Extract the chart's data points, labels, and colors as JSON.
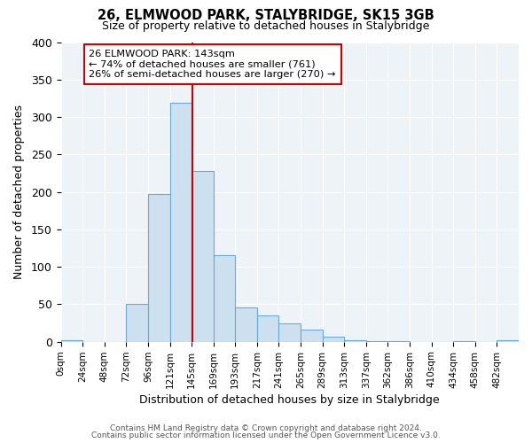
{
  "title": "26, ELMWOOD PARK, STALYBRIDGE, SK15 3GB",
  "subtitle": "Size of property relative to detached houses in Stalybridge",
  "xlabel": "Distribution of detached houses by size in Stalybridge",
  "ylabel": "Number of detached properties",
  "bar_color": "#cce0f0",
  "bar_edge_color": "#6aaad4",
  "plot_bg_color": "#eef3f8",
  "fig_bg_color": "#ffffff",
  "grid_color": "#ffffff",
  "vline_x": 145,
  "vline_color": "#cc0000",
  "annotation_line1": "26 ELMWOOD PARK: 143sqm",
  "annotation_line2": "← 74% of detached houses are smaller (761)",
  "annotation_line3": "26% of semi-detached houses are larger (270) →",
  "annotation_box_color": "#ffffff",
  "annotation_box_edge": "#cc0000",
  "bin_edges": [
    0,
    24,
    48,
    72,
    96,
    120,
    144,
    168,
    192,
    216,
    240,
    264,
    288,
    312,
    336,
    360,
    384,
    408,
    432,
    456,
    480,
    504
  ],
  "bar_heights": [
    2,
    0,
    0,
    51,
    197,
    319,
    228,
    116,
    46,
    35,
    25,
    16,
    7,
    2,
    1,
    1,
    0,
    0,
    1,
    0,
    2
  ],
  "xlim": [
    0,
    504
  ],
  "ylim": [
    0,
    400
  ],
  "yticks": [
    0,
    50,
    100,
    150,
    200,
    250,
    300,
    350,
    400
  ],
  "xtick_labels": [
    "0sqm",
    "24sqm",
    "48sqm",
    "72sqm",
    "96sqm",
    "121sqm",
    "145sqm",
    "169sqm",
    "193sqm",
    "217sqm",
    "241sqm",
    "265sqm",
    "289sqm",
    "313sqm",
    "337sqm",
    "362sqm",
    "386sqm",
    "410sqm",
    "434sqm",
    "458sqm",
    "482sqm"
  ],
  "footer1": "Contains HM Land Registry data © Crown copyright and database right 2024.",
  "footer2": "Contains public sector information licensed under the Open Government Licence v3.0."
}
